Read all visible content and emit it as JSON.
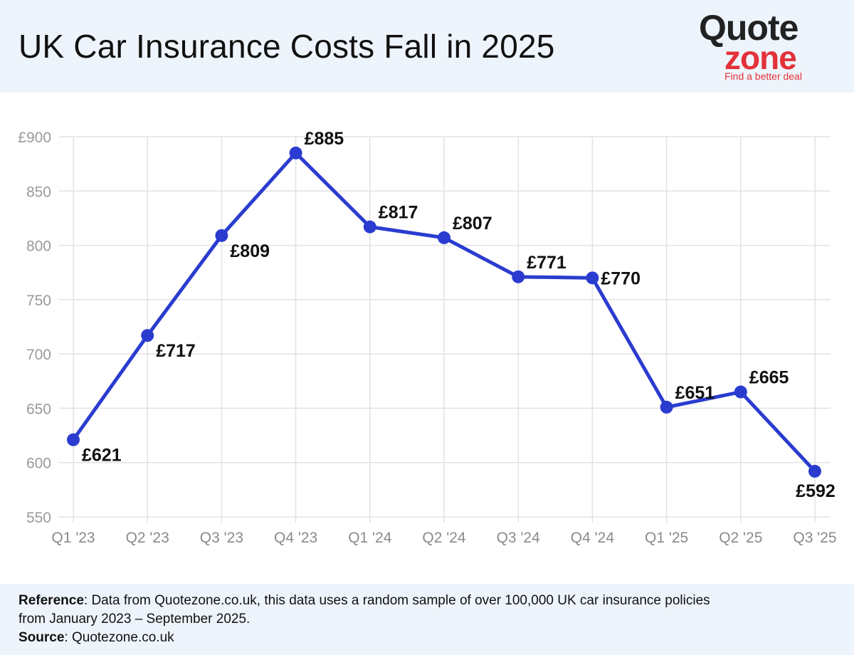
{
  "header": {
    "title": "UK Car Insurance Costs Fall in 2025",
    "logo": {
      "word1": "Quote",
      "word2": "zone",
      "tagline": "Find a better deal"
    }
  },
  "chart_data": {
    "type": "line",
    "title": "UK Car Insurance Costs Fall in 2025",
    "xlabel": "",
    "ylabel": "",
    "categories": [
      "Q1 '23",
      "Q2 '23",
      "Q3 '23",
      "Q4 '23",
      "Q1 '24",
      "Q2 '24",
      "Q3 '24",
      "Q4 '24",
      "Q1 '25",
      "Q2 '25",
      "Q3 '25"
    ],
    "series": [
      {
        "values": [
          621,
          717,
          809,
          885,
          817,
          807,
          771,
          770,
          651,
          665,
          592
        ]
      }
    ],
    "data_labels": [
      "£621",
      "£717",
      "£809",
      "£885",
      "£817",
      "£807",
      "£771",
      "£770",
      "£651",
      "£665",
      "£592"
    ],
    "ylim": [
      550,
      900
    ],
    "y_ticks": [
      550,
      600,
      650,
      700,
      750,
      800,
      850,
      900
    ],
    "y_tick_labels": [
      "550",
      "600",
      "650",
      "700",
      "750",
      "800",
      "850",
      "£900"
    ],
    "grid": true,
    "legend": "none",
    "line_color": "#2a3ccf"
  },
  "footer": {
    "reference_label": "Reference",
    "reference_text_line1": ": Data from Quotezone.co.uk, this data uses a random sample of over 100,000 UK car insurance policies",
    "reference_text_line2": "from January 2023 – September 2025.",
    "source_label": "Source",
    "source_text": ": Quotezone.co.uk"
  }
}
